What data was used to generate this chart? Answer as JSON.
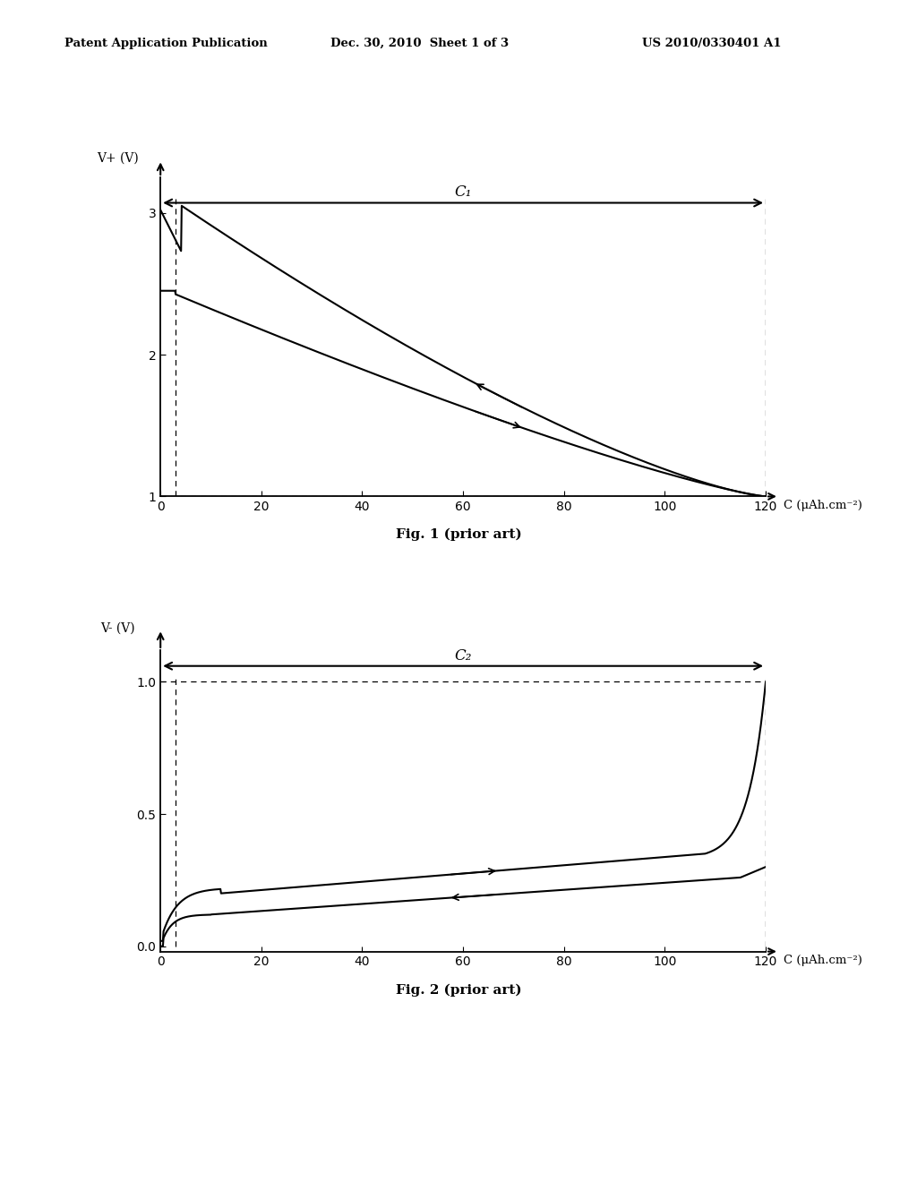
{
  "header_left": "Patent Application Publication",
  "header_center": "Dec. 30, 2010  Sheet 1 of 3",
  "header_right": "US 2010/0330401 A1",
  "fig1_caption": "Fig. 1 (prior art)",
  "fig2_caption": "Fig. 2 (prior art)",
  "fig1_ylabel": "V+ (V)",
  "fig2_ylabel": "V- (V)",
  "fig1_xlabel": "C (μAh.cm⁻²)",
  "fig2_xlabel": "C (μAh.cm⁻²)",
  "fig1_C_label": "C₁",
  "fig2_C_label": "C₂",
  "fig1_xlim": [
    0,
    120
  ],
  "fig1_ylim": [
    1.0,
    3.25
  ],
  "fig2_xlim": [
    0,
    120
  ],
  "fig2_ylim": [
    -0.02,
    1.12
  ],
  "fig1_yticks": [
    1.0,
    2.0,
    3.0
  ],
  "fig2_yticks": [
    0,
    0.5,
    1.0
  ],
  "fig1_xticks": [
    0,
    20,
    40,
    60,
    80,
    100,
    120
  ],
  "fig2_xticks": [
    0,
    20,
    40,
    60,
    80,
    100,
    120
  ],
  "background_color": "#ffffff",
  "line_color": "#000000"
}
